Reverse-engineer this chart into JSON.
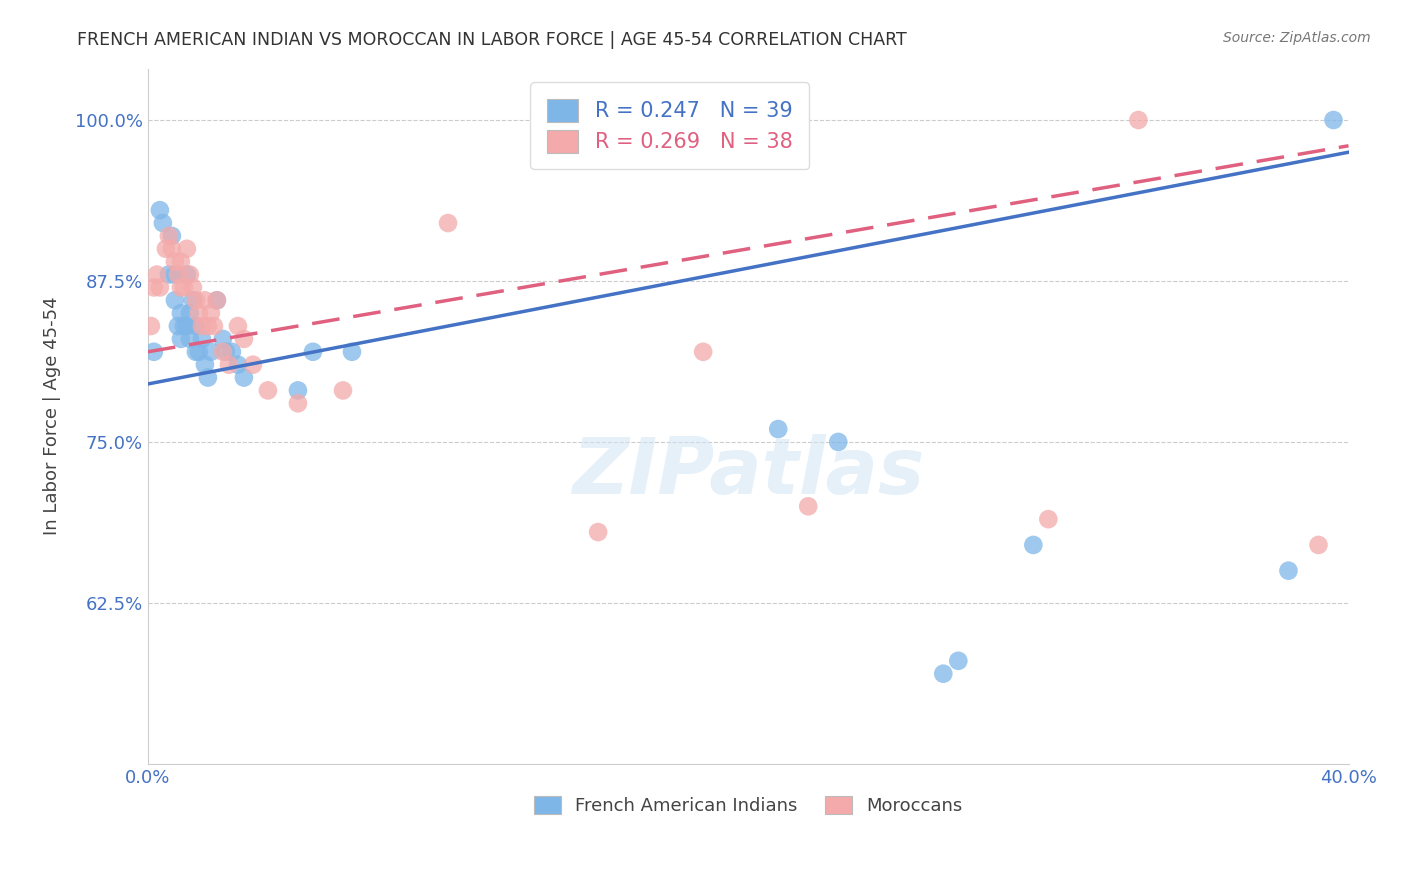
{
  "title": "FRENCH AMERICAN INDIAN VS MOROCCAN IN LABOR FORCE | AGE 45-54 CORRELATION CHART",
  "source": "Source: ZipAtlas.com",
  "xlabel": "",
  "ylabel": "In Labor Force | Age 45-54",
  "xlim": [
    0.0,
    0.4
  ],
  "ylim": [
    0.5,
    1.04
  ],
  "xticks": [
    0.0,
    0.05,
    0.1,
    0.15,
    0.2,
    0.25,
    0.3,
    0.35,
    0.4
  ],
  "yticks": [
    0.625,
    0.75,
    0.875,
    1.0
  ],
  "yticklabels": [
    "62.5%",
    "75.0%",
    "87.5%",
    "100.0%"
  ],
  "blue_R": "0.247",
  "blue_N": "39",
  "pink_R": "0.269",
  "pink_N": "38",
  "blue_color": "#7EB6E8",
  "pink_color": "#F4AAAA",
  "blue_line_color": "#4472C4",
  "pink_line_color": "#E06080",
  "legend_label_blue": "French American Indians",
  "legend_label_pink": "Moroccans",
  "watermark": "ZIPatlas",
  "blue_x": [
    0.002,
    0.004,
    0.005,
    0.007,
    0.008,
    0.009,
    0.009,
    0.01,
    0.011,
    0.011,
    0.012,
    0.013,
    0.013,
    0.014,
    0.014,
    0.015,
    0.016,
    0.016,
    0.017,
    0.018,
    0.019,
    0.02,
    0.021,
    0.023,
    0.025,
    0.026,
    0.028,
    0.03,
    0.032,
    0.055,
    0.068,
    0.21,
    0.23,
    0.265,
    0.27,
    0.295,
    0.38,
    0.395,
    0.05
  ],
  "blue_y": [
    0.82,
    0.93,
    0.92,
    0.88,
    0.91,
    0.88,
    0.86,
    0.84,
    0.85,
    0.83,
    0.84,
    0.84,
    0.88,
    0.83,
    0.85,
    0.86,
    0.82,
    0.84,
    0.82,
    0.83,
    0.81,
    0.8,
    0.82,
    0.86,
    0.83,
    0.82,
    0.82,
    0.81,
    0.8,
    0.82,
    0.82,
    0.76,
    0.75,
    0.57,
    0.58,
    0.67,
    0.65,
    1.0,
    0.79
  ],
  "pink_x": [
    0.001,
    0.002,
    0.003,
    0.004,
    0.006,
    0.007,
    0.008,
    0.009,
    0.01,
    0.011,
    0.011,
    0.012,
    0.013,
    0.014,
    0.015,
    0.016,
    0.017,
    0.018,
    0.019,
    0.02,
    0.021,
    0.022,
    0.023,
    0.025,
    0.027,
    0.03,
    0.032,
    0.035,
    0.04,
    0.05,
    0.065,
    0.1,
    0.15,
    0.185,
    0.22,
    0.3,
    0.33,
    0.39
  ],
  "pink_x_highlight": [
    0.33
  ],
  "pink_y": [
    0.84,
    0.87,
    0.88,
    0.87,
    0.9,
    0.91,
    0.9,
    0.89,
    0.88,
    0.87,
    0.89,
    0.87,
    0.9,
    0.88,
    0.87,
    0.86,
    0.85,
    0.84,
    0.86,
    0.84,
    0.85,
    0.84,
    0.86,
    0.82,
    0.81,
    0.84,
    0.83,
    0.81,
    0.79,
    0.78,
    0.79,
    0.92,
    0.68,
    0.82,
    0.7,
    0.69,
    1.0,
    0.67
  ],
  "blue_line_x0": 0.0,
  "blue_line_y0": 0.795,
  "blue_line_x1": 0.4,
  "blue_line_y1": 0.975,
  "pink_line_x0": 0.0,
  "pink_line_y0": 0.82,
  "pink_line_x1": 0.4,
  "pink_line_y1": 0.98
}
